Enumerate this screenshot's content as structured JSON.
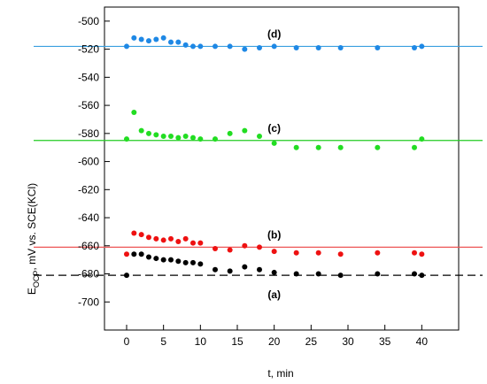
{
  "chart_data": {
    "type": "scatter",
    "title": "",
    "xlabel": "t, min",
    "ylabel_main": "E",
    "ylabel_sub": "OCP",
    "ylabel_rest": ", mV vs. SCE(KCl)",
    "xlim": [
      -3,
      45
    ],
    "ylim": [
      -720,
      -490
    ],
    "x_ticks": [
      0,
      5,
      10,
      15,
      20,
      25,
      30,
      35,
      40
    ],
    "y_ticks": [
      -500,
      -520,
      -540,
      -560,
      -580,
      -600,
      -620,
      -640,
      -660,
      -680,
      -700
    ],
    "grid": false,
    "series": [
      {
        "name": "(d)",
        "point_color": "#1e88e5",
        "line_color": "#3aa0e0",
        "line_style": "solid",
        "fit_y": -518,
        "x": [
          0,
          1,
          2,
          3,
          4,
          5,
          6,
          7,
          8,
          9,
          10,
          12,
          14,
          16,
          18,
          20,
          23,
          26,
          29,
          34,
          39,
          40
        ],
        "y": [
          -518,
          -512,
          -513,
          -514,
          -513,
          -512,
          -515,
          -515,
          -517,
          -518,
          -518,
          -518,
          -518,
          -520,
          -519,
          -518,
          -519,
          -519,
          -519,
          -519,
          -519,
          -518
        ]
      },
      {
        "name": "(c)",
        "point_color": "#22dd22",
        "line_color": "#22cc22",
        "line_style": "solid",
        "fit_y": -585,
        "x": [
          0,
          1,
          2,
          3,
          4,
          5,
          6,
          7,
          8,
          9,
          10,
          12,
          14,
          16,
          18,
          20,
          23,
          26,
          29,
          34,
          39,
          40
        ],
        "y": [
          -584,
          -565,
          -578,
          -580,
          -581,
          -582,
          -582,
          -583,
          -582,
          -583,
          -584,
          -584,
          -580,
          -578,
          -582,
          -587,
          -590,
          -590,
          -590,
          -590,
          -590,
          -584
        ]
      },
      {
        "name": "(b)",
        "point_color": "#ee1111",
        "line_color": "#ee5555",
        "line_style": "solid",
        "fit_y": -661,
        "x": [
          0,
          1,
          2,
          3,
          4,
          5,
          6,
          7,
          8,
          9,
          10,
          12,
          14,
          16,
          18,
          20,
          23,
          26,
          29,
          34,
          39,
          40
        ],
        "y": [
          -666,
          -651,
          -652,
          -654,
          -655,
          -656,
          -655,
          -657,
          -655,
          -658,
          -658,
          -662,
          -663,
          -660,
          -661,
          -664,
          -665,
          -665,
          -666,
          -665,
          -665,
          -666
        ]
      },
      {
        "name": "(a)",
        "point_color": "#000000",
        "line_color": "#000000",
        "line_style": "dashed",
        "fit_y": -681,
        "x": [
          0,
          1,
          2,
          3,
          4,
          5,
          6,
          7,
          8,
          9,
          10,
          12,
          14,
          16,
          18,
          20,
          23,
          26,
          29,
          34,
          39,
          40
        ],
        "y": [
          -681,
          -666,
          -666,
          -668,
          -669,
          -670,
          -670,
          -671,
          -672,
          -672,
          -673,
          -677,
          -678,
          -675,
          -677,
          -679,
          -680,
          -680,
          -681,
          -680,
          -680,
          -681
        ]
      }
    ]
  }
}
